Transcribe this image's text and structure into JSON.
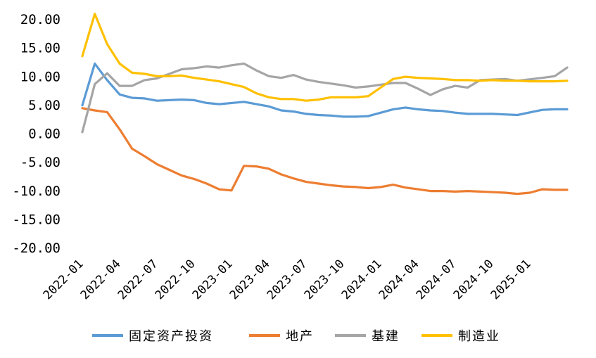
{
  "chart_data": {
    "type": "line",
    "title": "",
    "xlabel": "",
    "ylabel": "",
    "ylim": [
      -20,
      20
    ],
    "yticks": [
      "20.00",
      "15.00",
      "10.00",
      "5.00",
      "0.00",
      "-5.00",
      "-10.00",
      "-15.00",
      "-20.00"
    ],
    "x_tick_labels": [
      "2022-01",
      "2022-04",
      "2022-07",
      "2022-10",
      "2023-01",
      "2023-04",
      "2023-07",
      "2023-10",
      "2024-01",
      "2024-04",
      "2024-07",
      "2024-10",
      "2025-01"
    ],
    "x": [
      "2022-01",
      "2022-02",
      "2022-03",
      "2022-04",
      "2022-05",
      "2022-06",
      "2022-07",
      "2022-08",
      "2022-09",
      "2022-10",
      "2022-11",
      "2022-12",
      "2023-01",
      "2023-02",
      "2023-03",
      "2023-04",
      "2023-05",
      "2023-06",
      "2023-07",
      "2023-08",
      "2023-09",
      "2023-10",
      "2023-11",
      "2023-12",
      "2024-01",
      "2024-02",
      "2024-03",
      "2024-04",
      "2024-05",
      "2024-06",
      "2024-07",
      "2024-08",
      "2024-09",
      "2024-10",
      "2024-11",
      "2024-12",
      "2025-01",
      "2025-02",
      "2025-03",
      "2025-04"
    ],
    "grid": false,
    "legend_position": "bottom",
    "series": [
      {
        "name": "固定资产投资",
        "color": "#5B9BD5",
        "values": [
          4.9,
          12.2,
          9.3,
          6.8,
          6.2,
          6.1,
          5.7,
          5.8,
          5.9,
          5.8,
          5.3,
          5.1,
          null,
          5.5,
          5.1,
          4.7,
          4.0,
          3.8,
          3.4,
          3.2,
          3.1,
          2.9,
          2.9,
          3.0,
          null,
          4.2,
          4.5,
          4.2,
          4.0,
          3.9,
          3.6,
          3.4,
          3.4,
          3.4,
          3.3,
          3.2,
          null,
          4.1,
          4.2,
          4.2
        ]
      },
      {
        "name": "地产",
        "color": "#ED7D31",
        "values": [
          4.4,
          4.0,
          3.7,
          0.7,
          -2.7,
          -4.0,
          -5.4,
          -6.4,
          -7.4,
          -8.0,
          -8.8,
          -9.8,
          -10.0,
          -5.7,
          -5.8,
          -6.2,
          -7.2,
          -7.9,
          -8.5,
          -8.8,
          -9.1,
          -9.3,
          -9.4,
          -9.6,
          -9.4,
          -9.0,
          -9.5,
          -9.8,
          -10.1,
          -10.1,
          -10.2,
          -10.1,
          -10.2,
          -10.3,
          -10.4,
          -10.6,
          -10.4,
          -9.8,
          -9.9,
          -9.9
        ]
      },
      {
        "name": "基建",
        "color": "#A5A5A5",
        "values": [
          0.2,
          8.6,
          10.5,
          8.3,
          8.3,
          9.3,
          9.6,
          10.4,
          11.2,
          11.4,
          11.7,
          11.5,
          11.9,
          12.2,
          11.0,
          10.0,
          9.7,
          10.2,
          9.4,
          9.0,
          8.7,
          8.4,
          8.0,
          8.2,
          8.5,
          8.8,
          8.8,
          7.8,
          6.7,
          7.7,
          8.3,
          8.0,
          9.3,
          9.4,
          9.5,
          9.2,
          null,
          9.7,
          10.0,
          11.5
        ]
      },
      {
        "name": "制造业",
        "color": "#FFC000",
        "values": [
          13.5,
          20.9,
          15.6,
          12.2,
          10.6,
          10.4,
          10.0,
          10.0,
          10.1,
          9.7,
          9.4,
          9.1,
          null,
          8.1,
          7.0,
          6.3,
          6.0,
          6.0,
          5.7,
          5.9,
          6.3,
          6.3,
          6.3,
          6.5,
          null,
          9.5,
          9.9,
          9.7,
          9.6,
          9.5,
          9.3,
          9.3,
          9.2,
          9.3,
          9.2,
          9.2,
          9.1,
          9.1,
          9.1,
          9.2
        ]
      }
    ]
  }
}
